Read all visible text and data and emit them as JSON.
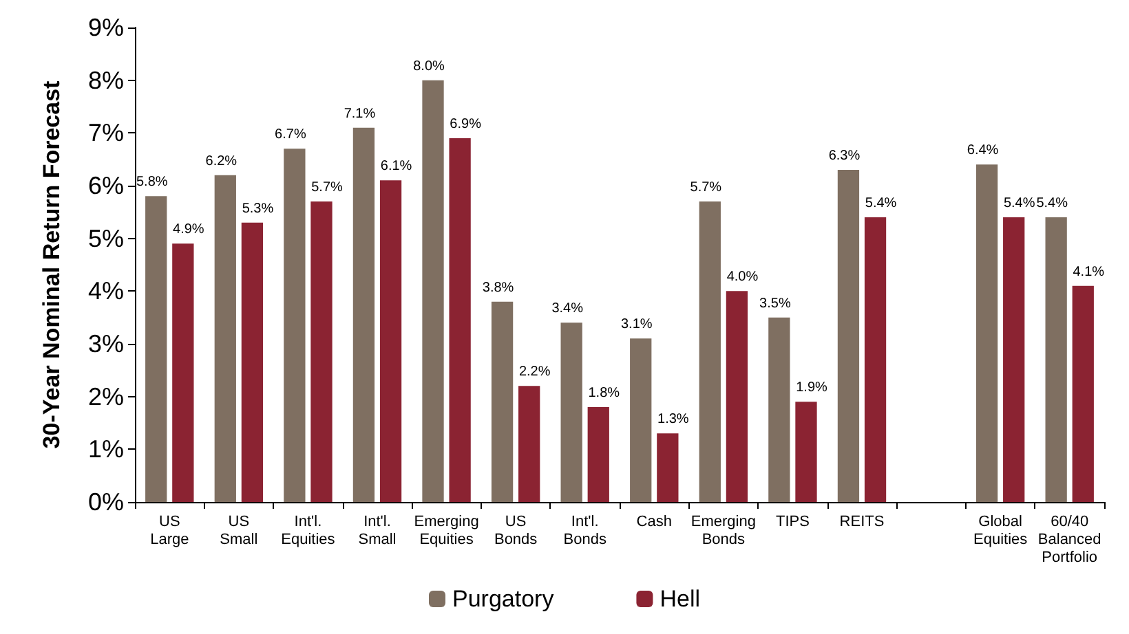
{
  "chart_data": {
    "type": "bar",
    "ylabel": "30-Year Nominal Return Forecast",
    "categories": [
      "US Large",
      "US Small",
      "Int'l. Equities",
      "Int'l. Small",
      "Emerging Equities",
      "US Bonds",
      "Int'l. Bonds",
      "Cash",
      "Emerging Bonds",
      "TIPS",
      "REITS",
      null,
      "Global Equities",
      "60/40 Balanced Portfolio"
    ],
    "series": [
      {
        "name": "Purgatory",
        "color": "#7f6f61",
        "values": [
          5.8,
          6.2,
          6.7,
          7.1,
          8.0,
          3.8,
          3.4,
          3.1,
          5.7,
          3.5,
          6.3,
          null,
          6.4,
          5.4
        ],
        "value_labels": [
          "5.8%",
          "6.2%",
          "6.7%",
          "7.1%",
          "8.0%",
          "3.8%",
          "3.4%",
          "3.1%",
          "5.7%",
          "3.5%",
          "6.3%",
          null,
          "6.4%",
          "5.4%"
        ]
      },
      {
        "name": "Hell",
        "color": "#8b2332",
        "values": [
          4.9,
          5.3,
          5.7,
          6.1,
          6.9,
          2.2,
          1.8,
          1.3,
          4.0,
          1.9,
          5.4,
          null,
          5.4,
          4.1
        ],
        "value_labels": [
          "4.9%",
          "5.3%",
          "5.7%",
          "6.1%",
          "6.9%",
          "2.2%",
          "1.8%",
          "1.3%",
          "4.0%",
          "1.9%",
          "5.4%",
          null,
          "5.4%",
          "4.1%"
        ]
      }
    ],
    "ylim": [
      0,
      9
    ],
    "yticks": [
      {
        "value": 0,
        "label": "0%"
      },
      {
        "value": 1,
        "label": "1%"
      },
      {
        "value": 2,
        "label": "2%"
      },
      {
        "value": 3,
        "label": "3%"
      },
      {
        "value": 4,
        "label": "4%"
      },
      {
        "value": 5,
        "label": "5%"
      },
      {
        "value": 6,
        "label": "6%"
      },
      {
        "value": 7,
        "label": "7%"
      },
      {
        "value": 8,
        "label": "8%"
      },
      {
        "value": 9,
        "label": "9%"
      }
    ],
    "legend": "bottom",
    "grid": false
  }
}
